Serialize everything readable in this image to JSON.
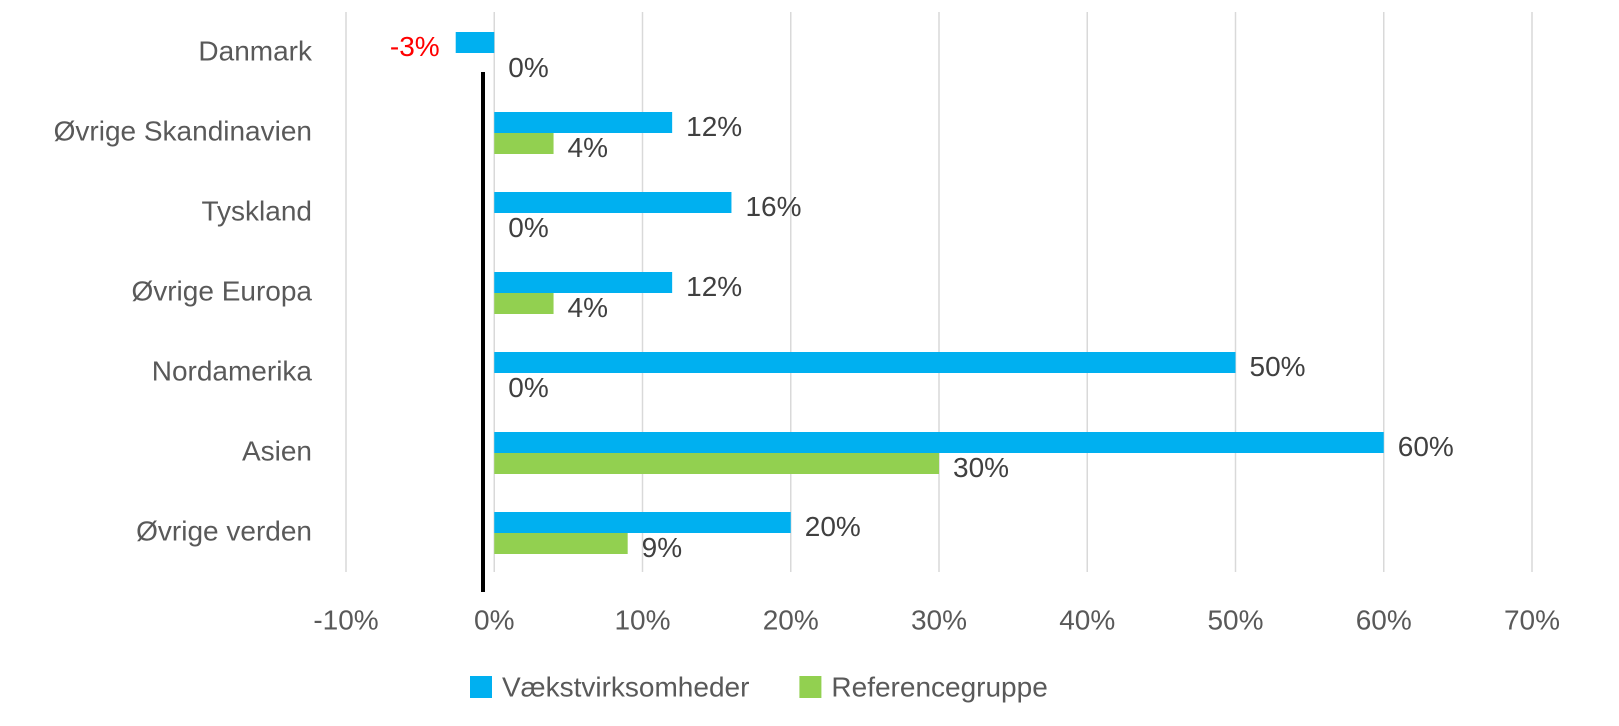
{
  "chart_data": {
    "type": "bar",
    "orientation": "horizontal",
    "categories": [
      "Danmark",
      "Øvrige Skandinavien",
      "Tyskland",
      "Øvrige Europa",
      "Nordamerika",
      "Asien",
      "Øvrige verden"
    ],
    "series": [
      {
        "name": "Vækstvirksomheder",
        "color": "#00b0f0",
        "values": [
          -2.6,
          12,
          16,
          12,
          50,
          60,
          20
        ],
        "value_labels": [
          "-3%",
          "12%",
          "16%",
          "12%",
          "50%",
          "60%",
          "20%"
        ]
      },
      {
        "name": "Referencegruppe",
        "color": "#92d050",
        "values": [
          0,
          4,
          0,
          4,
          0,
          30,
          9
        ],
        "value_labels": [
          "0%",
          "4%",
          "0%",
          "4%",
          "0%",
          "30%",
          "9%"
        ]
      }
    ],
    "xlim": [
      -10,
      70
    ],
    "xticks": [
      {
        "value": -10,
        "label": "-10%"
      },
      {
        "value": 0,
        "label": "0%"
      },
      {
        "value": 10,
        "label": "10%"
      },
      {
        "value": 20,
        "label": "20%"
      },
      {
        "value": 30,
        "label": "30%"
      },
      {
        "value": 40,
        "label": "40%"
      },
      {
        "value": 50,
        "label": "50%"
      },
      {
        "value": 60,
        "label": "60%"
      },
      {
        "value": 70,
        "label": "70%"
      }
    ],
    "grid": true,
    "legend": "bottom"
  }
}
